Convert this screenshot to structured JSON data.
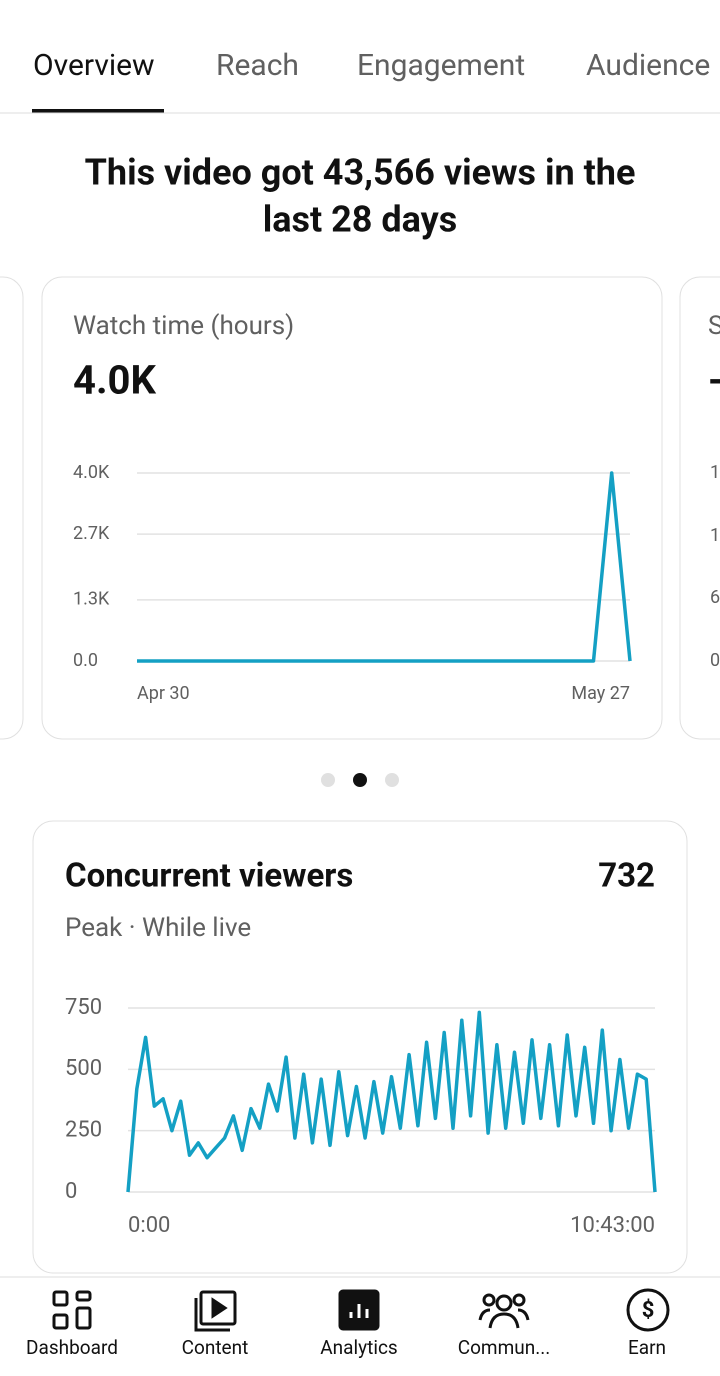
{
  "tabs": [
    "Overview",
    "Reach",
    "Engagement",
    "Audience"
  ],
  "headline": [
    "This video got 43,566 views in the",
    "last 28 days"
  ],
  "peek_card": {
    "title": "S",
    "value": "-",
    "ticks": [
      "1",
      "1",
      "6",
      "0"
    ]
  },
  "chart_data": [
    {
      "type": "line",
      "title": "Watch time (hours)",
      "value_label": "4.0K",
      "categories": [
        "Apr 30",
        null,
        null,
        null,
        null,
        null,
        null,
        null,
        null,
        null,
        null,
        null,
        null,
        null,
        null,
        null,
        null,
        null,
        null,
        null,
        null,
        null,
        null,
        null,
        null,
        null,
        null,
        "May 27"
      ],
      "series": [
        {
          "name": "Watch time (hours)",
          "color": "#14a0c4",
          "values": [
            0,
            0,
            0,
            0,
            0,
            0,
            0,
            0,
            0,
            0,
            0,
            0,
            0,
            0,
            0,
            0,
            0,
            0,
            0,
            0,
            0,
            0,
            0,
            0,
            0,
            0,
            4000,
            0
          ]
        }
      ],
      "ylim": [
        0,
        4000
      ],
      "yticks": [
        {
          "value": 4000,
          "label": "4.0K"
        },
        {
          "value": 2700,
          "label": "2.7K"
        },
        {
          "value": 1300,
          "label": "1.3K"
        },
        {
          "value": 0,
          "label": "0.0"
        }
      ],
      "grid": true
    },
    {
      "type": "line",
      "title": "Concurrent viewers",
      "value_label": "732",
      "subtitle": "Peak · While live",
      "x": [
        0,
        643,
        1286,
        1929,
        2572,
        3215,
        3858,
        4501,
        5144,
        5787,
        6430,
        7073,
        7716,
        8359,
        9002,
        9645,
        10288,
        10931,
        11574,
        12217,
        12860,
        13503,
        14146,
        14789,
        15432,
        16075,
        16718,
        17361,
        18004,
        18647,
        19290,
        19933,
        20576,
        21219,
        21862,
        22505,
        23148,
        23791,
        24434,
        25077,
        25720,
        26363,
        27006,
        27649,
        28292,
        28935,
        29578,
        30221,
        30864,
        31507,
        32150,
        32793,
        33436,
        34079,
        34722,
        35365,
        36008,
        36651,
        37294,
        37937,
        38580
      ],
      "series": [
        {
          "name": "Concurrent viewers",
          "color": "#14a0c4",
          "values": [
            0,
            420,
            630,
            350,
            380,
            250,
            370,
            150,
            200,
            140,
            180,
            220,
            310,
            170,
            340,
            260,
            440,
            330,
            550,
            220,
            480,
            200,
            460,
            190,
            490,
            230,
            430,
            220,
            450,
            240,
            470,
            260,
            560,
            270,
            610,
            300,
            650,
            260,
            700,
            310,
            732,
            240,
            600,
            260,
            570,
            280,
            620,
            300,
            600,
            270,
            640,
            310,
            590,
            280,
            660,
            250,
            540,
            260,
            480,
            460,
            0
          ]
        }
      ],
      "xlim": [
        0,
        38580
      ],
      "xticks": [
        {
          "value": 0,
          "label": "0:00"
        },
        {
          "value": 38580,
          "label": "10:43:00"
        }
      ],
      "ylim": [
        0,
        750
      ],
      "yticks": [
        750,
        500,
        250,
        0
      ],
      "grid": true
    }
  ],
  "nav": [
    "Dashboard",
    "Content",
    "Analytics",
    "Commun...",
    "Earn"
  ]
}
